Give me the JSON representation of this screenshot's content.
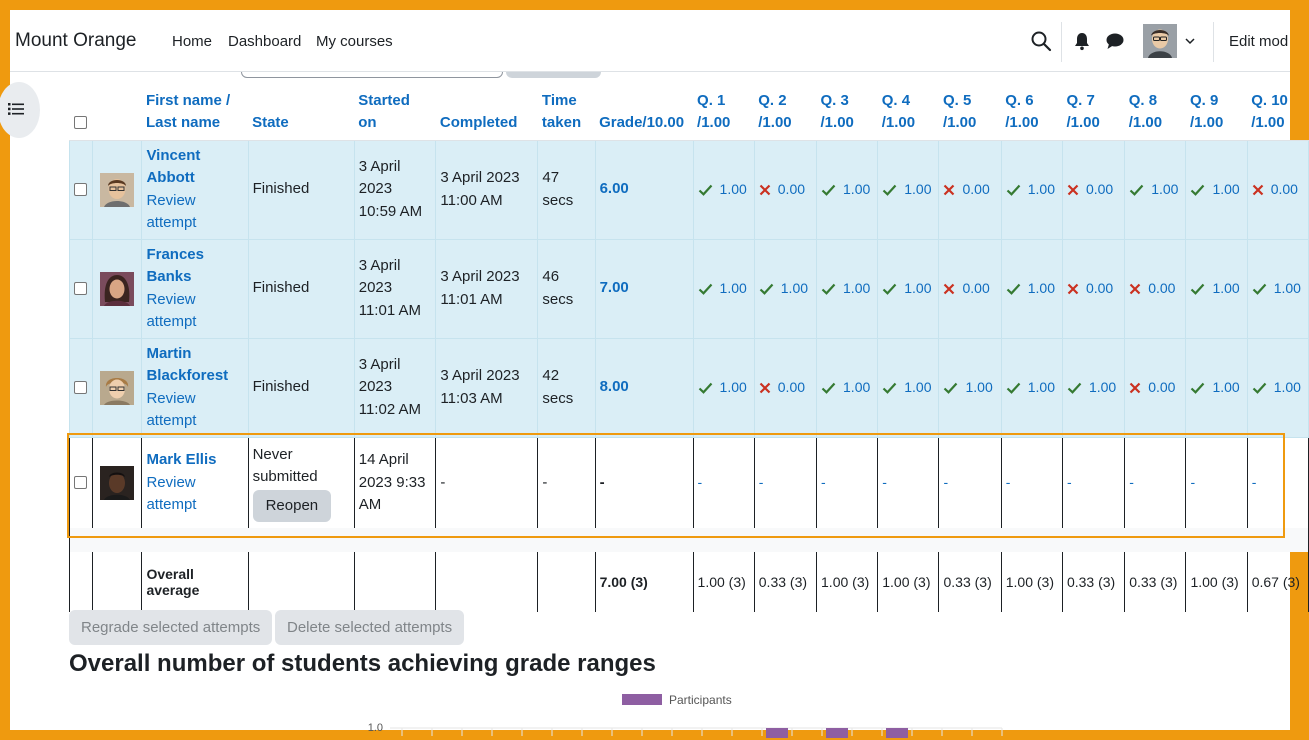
{
  "site": {
    "brand": "Mount Orange"
  },
  "nav": {
    "links": [
      "Home",
      "Dashboard",
      "My courses"
    ],
    "edit_mode": "Edit mod"
  },
  "table": {
    "headers": {
      "name": "First name / Last name",
      "name_line1": "First name /",
      "name_line2": "Last name",
      "state": "State",
      "started": "Started on",
      "started_line1": "Started",
      "started_line2": "on",
      "completed": "Completed",
      "time_line1": "Time",
      "time_line2": "taken",
      "grade": "Grade/10.00",
      "questions": [
        {
          "num": "Q. 1",
          "max": "/1.00"
        },
        {
          "num": "Q. 2",
          "max": "/1.00"
        },
        {
          "num": "Q. 3",
          "max": "/1.00"
        },
        {
          "num": "Q. 4",
          "max": "/1.00"
        },
        {
          "num": "Q. 5",
          "max": "/1.00"
        },
        {
          "num": "Q. 6",
          "max": "/1.00"
        },
        {
          "num": "Q. 7",
          "max": "/1.00"
        },
        {
          "num": "Q. 8",
          "max": "/1.00"
        },
        {
          "num": "Q. 9",
          "max": "/1.00"
        },
        {
          "num": "Q. 10",
          "max": "/1.00"
        }
      ]
    },
    "review_label": "Review attempt",
    "review_line1": "Review",
    "review_line2": "attempt",
    "rows": [
      {
        "first": "Vincent",
        "last": "Abbott",
        "state": "Finished",
        "started": [
          "3 April",
          "2023",
          "10:59 AM"
        ],
        "completed": [
          "3 April 2023",
          "11:00 AM"
        ],
        "time": [
          "47",
          "secs"
        ],
        "grade": "6.00",
        "marks": [
          {
            "ok": true,
            "v": "1.00"
          },
          {
            "ok": false,
            "v": "0.00"
          },
          {
            "ok": true,
            "v": "1.00"
          },
          {
            "ok": true,
            "v": "1.00"
          },
          {
            "ok": false,
            "v": "0.00"
          },
          {
            "ok": true,
            "v": "1.00"
          },
          {
            "ok": false,
            "v": "0.00"
          },
          {
            "ok": true,
            "v": "1.00"
          },
          {
            "ok": true,
            "v": "1.00"
          },
          {
            "ok": false,
            "v": "0.00"
          }
        ]
      },
      {
        "first": "Frances",
        "last": "Banks",
        "state": "Finished",
        "started": [
          "3 April",
          "2023",
          "11:01 AM"
        ],
        "completed": [
          "3 April 2023",
          "11:01 AM"
        ],
        "time": [
          "46",
          "secs"
        ],
        "grade": "7.00",
        "marks": [
          {
            "ok": true,
            "v": "1.00"
          },
          {
            "ok": true,
            "v": "1.00"
          },
          {
            "ok": true,
            "v": "1.00"
          },
          {
            "ok": true,
            "v": "1.00"
          },
          {
            "ok": false,
            "v": "0.00"
          },
          {
            "ok": true,
            "v": "1.00"
          },
          {
            "ok": false,
            "v": "0.00"
          },
          {
            "ok": false,
            "v": "0.00"
          },
          {
            "ok": true,
            "v": "1.00"
          },
          {
            "ok": true,
            "v": "1.00"
          }
        ]
      },
      {
        "first": "Martin",
        "last": "Blackforest",
        "state": "Finished",
        "started": [
          "3 April",
          "2023",
          "11:02 AM"
        ],
        "completed": [
          "3 April 2023",
          "11:03 AM"
        ],
        "time": [
          "42",
          "secs"
        ],
        "grade": "8.00",
        "marks": [
          {
            "ok": true,
            "v": "1.00"
          },
          {
            "ok": false,
            "v": "0.00"
          },
          {
            "ok": true,
            "v": "1.00"
          },
          {
            "ok": true,
            "v": "1.00"
          },
          {
            "ok": true,
            "v": "1.00"
          },
          {
            "ok": true,
            "v": "1.00"
          },
          {
            "ok": true,
            "v": "1.00"
          },
          {
            "ok": false,
            "v": "0.00"
          },
          {
            "ok": true,
            "v": "1.00"
          },
          {
            "ok": true,
            "v": "1.00"
          }
        ]
      }
    ],
    "pending": {
      "name": "Mark Ellis",
      "state": [
        "Never",
        "submitted"
      ],
      "reopen": "Reopen",
      "started": [
        "14 April",
        "2023 9:33",
        "AM"
      ],
      "completed": "-",
      "time": "-",
      "grade": "-",
      "mark": "-"
    },
    "average": {
      "label": [
        "Overall",
        "average"
      ],
      "grade": "7.00 (3)",
      "marks": [
        "1.00 (3)",
        "0.33 (3)",
        "1.00 (3)",
        "1.00 (3)",
        "0.33 (3)",
        "1.00 (3)",
        "0.33 (3)",
        "0.33 (3)",
        "1.00 (3)",
        "0.67 (3)"
      ]
    }
  },
  "actions": {
    "regrade": "Regrade selected attempts",
    "delete": "Delete selected attempts"
  },
  "section": {
    "heading": "Overall number of students achieving grade ranges"
  },
  "chart_data": {
    "type": "bar",
    "legend": [
      "Participants"
    ],
    "series": [
      {
        "name": "Participants",
        "color": "#8e5ea2"
      }
    ],
    "y_visible_tick": "1.0",
    "ylim_top": 1.0,
    "visible_bars": 3,
    "note": "chart is cut off at bottom of viewport; only top of three bars at value 1.0 visible"
  },
  "colors": {
    "accent": "#0f6cbf",
    "correct": "#357a32",
    "incorrect": "#ca3120",
    "highlight": "#ef9a0f",
    "row_bg": "#daeef6"
  }
}
